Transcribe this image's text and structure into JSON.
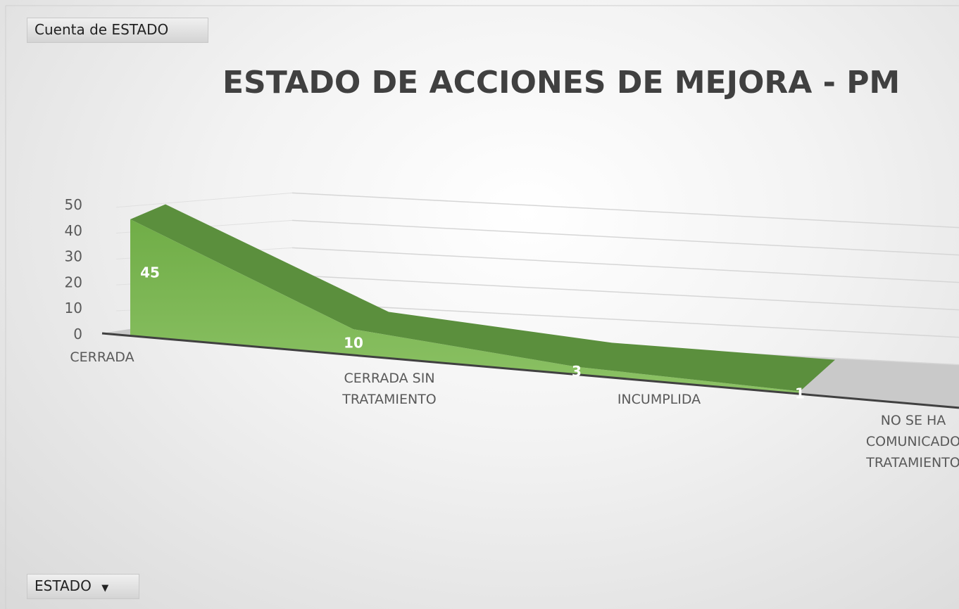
{
  "chart_data": {
    "type": "area3d",
    "title": "ESTADO DE ACCIONES DE MEJORA  - PM",
    "value_field": "Cuenta de ESTADO",
    "axis_field": "ESTADO",
    "categories": [
      "CERRADA",
      "CERRADA SIN TRATAMIENTO",
      "INCUMPLIDA",
      "NO SE HA COMUNICADO TRATAMIENTO"
    ],
    "values": [
      45,
      10,
      3,
      1
    ],
    "color": "#70ad47",
    "ylim": [
      0,
      50
    ],
    "yticks": [
      0,
      10,
      20,
      30,
      40,
      50
    ],
    "grid": true
  }
}
